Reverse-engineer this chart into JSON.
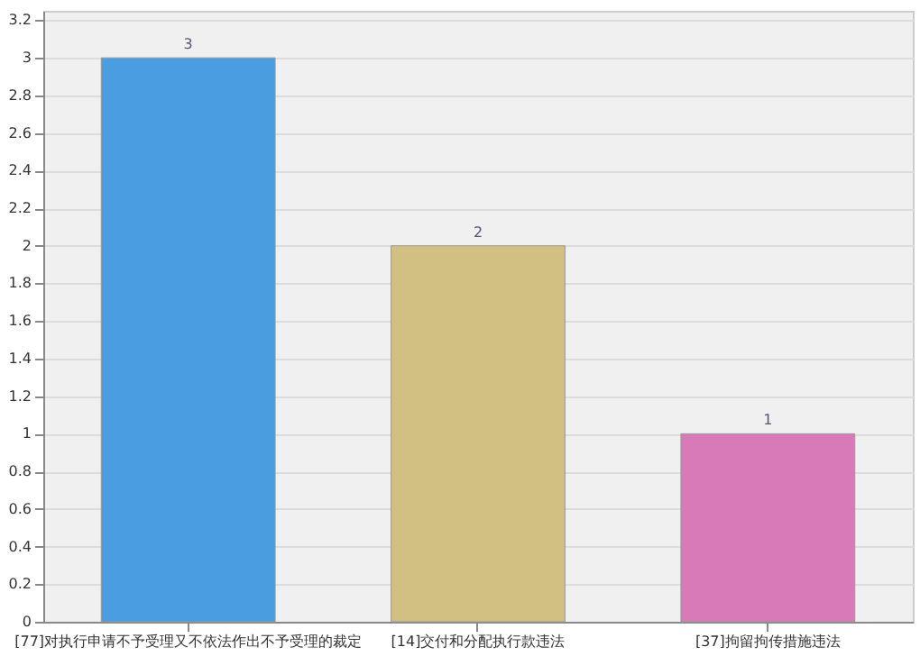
{
  "chart_data": {
    "type": "bar",
    "categories": [
      "[77]对执行申请不予受理又不依法作出不予受理的裁定",
      "[14]交付和分配执行款违法",
      "[37]拘留拘传措施违法"
    ],
    "values": [
      3,
      2,
      1
    ],
    "colors": [
      "#4a9de0",
      "#d2c083",
      "#d87ab8"
    ],
    "ylim": [
      0,
      3.25
    ],
    "yticks": [
      0,
      0.2,
      0.4,
      0.6,
      0.8,
      1,
      1.2,
      1.4,
      1.6,
      1.8,
      2,
      2.2,
      2.4,
      2.6,
      2.8,
      3,
      3.2
    ],
    "grid": "y",
    "data_labels": true
  }
}
